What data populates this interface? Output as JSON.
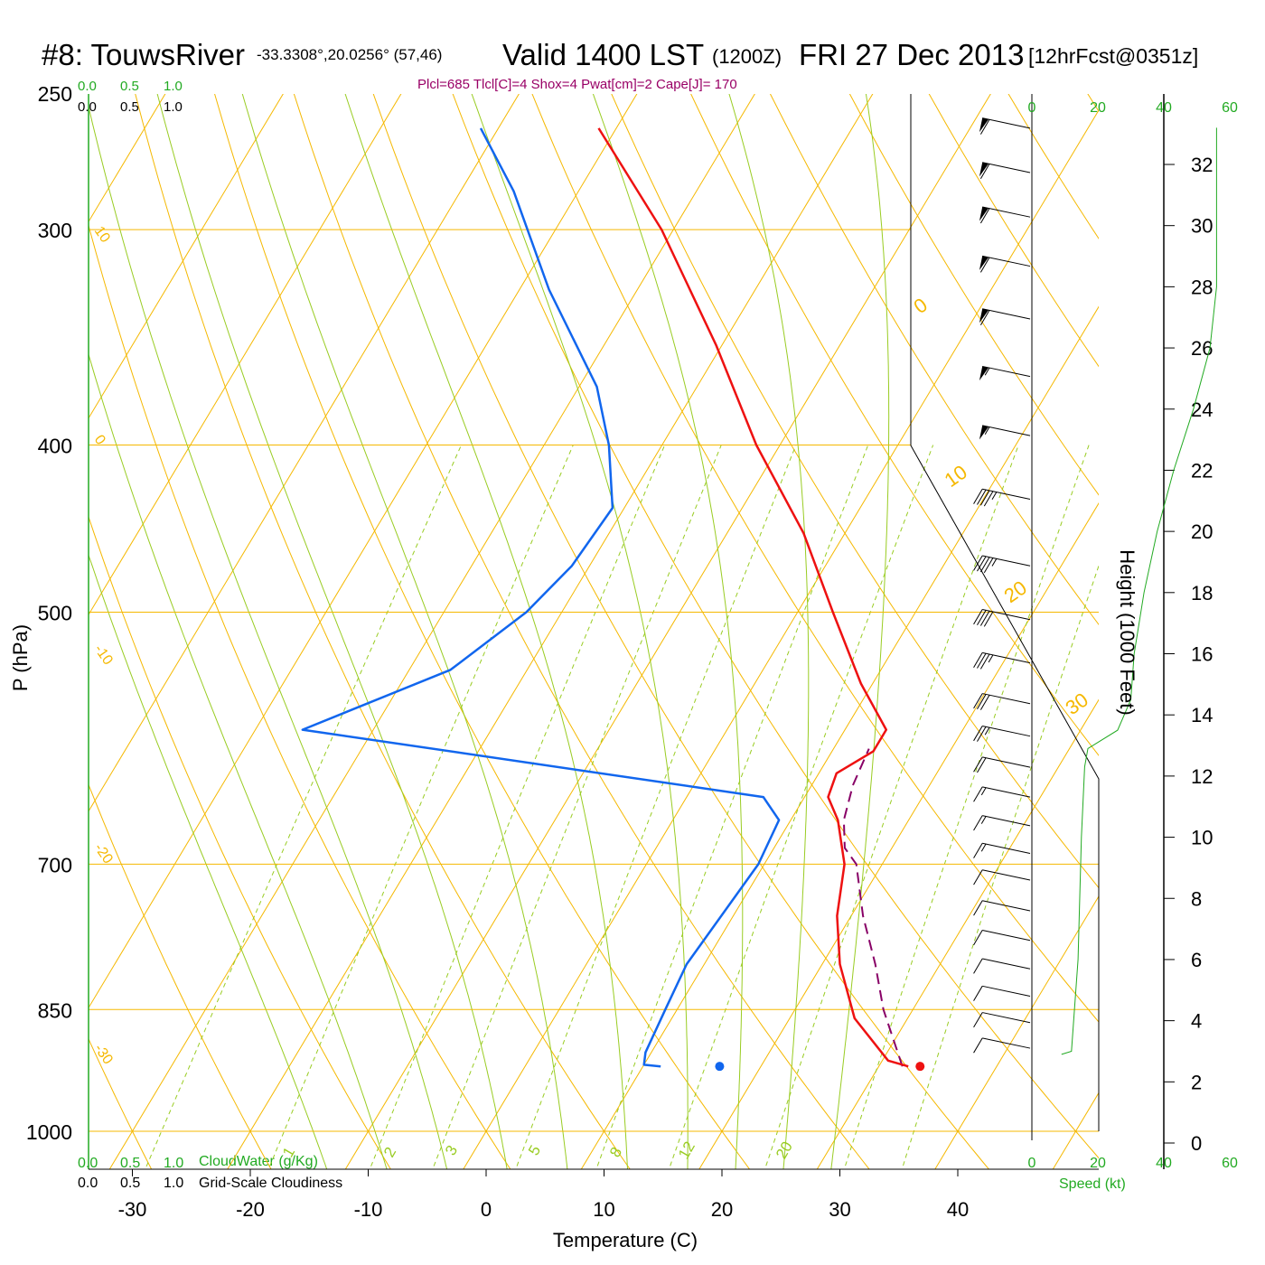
{
  "header": {
    "station": "#8: TouwsRiver",
    "coords": "-33.3308°,20.0256° (57,46)",
    "valid": "Valid 1400 LST",
    "utc": "(1200Z)",
    "date": "FRI 27 Dec 2013",
    "forecast": "[12hrFcst@0351z]",
    "indices": "Plcl=685 Tlcl[C]=4 Shox=4 Pwat[cm]=2 Cape[J]= 170"
  },
  "legends": {
    "cloudwater_ticks": [
      "0.0",
      "0.5",
      "1.0"
    ],
    "cloudiness_ticks": [
      "0.0",
      "0.5",
      "1.0"
    ],
    "cloudwater_label": "CloudWater (g/Kg)",
    "cloudiness_label": "Grid-Scale Cloudiness"
  },
  "colors": {
    "temperature": "#ee1111",
    "dewpoint": "#1166ee",
    "parcel": "#880066",
    "isobar": "#f5b800",
    "isotherm": "#f5b800",
    "dry_adiabat": "#f5b800",
    "moist_adiabat": "#99cc22",
    "mixing_ratio": "#99cc22",
    "speed_profile": "#22aa22",
    "indices_text": "#990066",
    "wind_barb": "#000000"
  },
  "chart_data": {
    "type": "skew-t log-p sounding",
    "xlabel": "Temperature (C)",
    "ylabel": "P (hPa)",
    "height_label": "Height (1000 Feet)",
    "speed_label": "Speed (kt)",
    "x_ticks": [
      -30,
      -20,
      -10,
      0,
      10,
      20,
      30,
      40
    ],
    "pressure_ticks": [
      250,
      300,
      400,
      500,
      700,
      850,
      1000
    ],
    "height_ticks": [
      0,
      2,
      4,
      6,
      8,
      10,
      12,
      14,
      16,
      18,
      20,
      22,
      24,
      26,
      28,
      30,
      32
    ],
    "speed_ticks": [
      0,
      20,
      40,
      60
    ],
    "isotherm_labels": [
      "10",
      "0",
      "-10",
      "-20",
      "-30"
    ],
    "isotherm_labels_right": [
      "0",
      "10",
      "20",
      "30"
    ],
    "mixing_ratio_labels": [
      "1",
      "2",
      "3",
      "5",
      "8",
      "12",
      "20"
    ],
    "temperature_profile": [
      {
        "p": 917,
        "t": 32.5
      },
      {
        "p": 910,
        "t": 30.5
      },
      {
        "p": 860,
        "t": 25.5
      },
      {
        "p": 800,
        "t": 21.5
      },
      {
        "p": 750,
        "t": 18.8
      },
      {
        "p": 700,
        "t": 16.8
      },
      {
        "p": 660,
        "t": 14.0
      },
      {
        "p": 640,
        "t": 12.0
      },
      {
        "p": 620,
        "t": 11.5
      },
      {
        "p": 602,
        "t": 13.5
      },
      {
        "p": 585,
        "t": 13.5
      },
      {
        "p": 550,
        "t": 9.0
      },
      {
        "p": 500,
        "t": 3.0
      },
      {
        "p": 450,
        "t": -3.5
      },
      {
        "p": 400,
        "t": -12.0
      },
      {
        "p": 350,
        "t": -20.5
      },
      {
        "p": 300,
        "t": -31.0
      },
      {
        "p": 262,
        "t": -41.5
      }
    ],
    "dewpoint_profile": [
      {
        "p": 917,
        "t": 11.5
      },
      {
        "p": 915,
        "t": 10.0
      },
      {
        "p": 900,
        "t": 9.5
      },
      {
        "p": 850,
        "t": 9.0
      },
      {
        "p": 800,
        "t": 8.5
      },
      {
        "p": 700,
        "t": 9.5
      },
      {
        "p": 660,
        "t": 9.0
      },
      {
        "p": 640,
        "t": 6.5
      },
      {
        "p": 585,
        "t": -36.0
      },
      {
        "p": 540,
        "t": -26.5
      },
      {
        "p": 500,
        "t": -23.0
      },
      {
        "p": 470,
        "t": -21.5
      },
      {
        "p": 435,
        "t": -21.0
      },
      {
        "p": 400,
        "t": -24.5
      },
      {
        "p": 370,
        "t": -28.5
      },
      {
        "p": 325,
        "t": -37.5
      },
      {
        "p": 285,
        "t": -45.5
      },
      {
        "p": 262,
        "t": -51.5
      }
    ],
    "parcel_profile": [
      {
        "p": 917,
        "t": 32.0
      },
      {
        "p": 850,
        "t": 27.5
      },
      {
        "p": 800,
        "t": 24.5
      },
      {
        "p": 750,
        "t": 21.0
      },
      {
        "p": 700,
        "t": 17.8
      },
      {
        "p": 685,
        "t": 16.0
      },
      {
        "p": 660,
        "t": 14.5
      },
      {
        "p": 630,
        "t": 13.5
      },
      {
        "p": 600,
        "t": 13.0
      }
    ],
    "surface_temperature": {
      "p": 917,
      "t": 33.5
    },
    "surface_dewpoint": {
      "p": 917,
      "t": 16.5
    },
    "wind_barbs_kt": [
      {
        "p": 262,
        "kt": 60
      },
      {
        "p": 278,
        "kt": 60
      },
      {
        "p": 295,
        "kt": 60
      },
      {
        "p": 315,
        "kt": 60
      },
      {
        "p": 338,
        "kt": 60
      },
      {
        "p": 365,
        "kt": 55
      },
      {
        "p": 395,
        "kt": 55
      },
      {
        "p": 430,
        "kt": 45
      },
      {
        "p": 470,
        "kt": 45
      },
      {
        "p": 505,
        "kt": 40
      },
      {
        "p": 535,
        "kt": 35
      },
      {
        "p": 565,
        "kt": 30
      },
      {
        "p": 590,
        "kt": 25
      },
      {
        "p": 615,
        "kt": 20
      },
      {
        "p": 640,
        "kt": 15
      },
      {
        "p": 665,
        "kt": 15
      },
      {
        "p": 690,
        "kt": 15
      },
      {
        "p": 715,
        "kt": 10
      },
      {
        "p": 745,
        "kt": 10
      },
      {
        "p": 775,
        "kt": 10
      },
      {
        "p": 805,
        "kt": 10
      },
      {
        "p": 835,
        "kt": 10
      },
      {
        "p": 865,
        "kt": 10
      },
      {
        "p": 895,
        "kt": 10
      }
    ],
    "speed_profile": [
      {
        "h": 2.9,
        "kt": 9
      },
      {
        "h": 3.0,
        "kt": 12
      },
      {
        "h": 6.0,
        "kt": 14
      },
      {
        "h": 10.0,
        "kt": 15
      },
      {
        "h": 12.3,
        "kt": 16
      },
      {
        "h": 12.9,
        "kt": 17
      },
      {
        "h": 13.5,
        "kt": 26
      },
      {
        "h": 14.5,
        "kt": 30
      },
      {
        "h": 16.0,
        "kt": 31
      },
      {
        "h": 18.0,
        "kt": 34
      },
      {
        "h": 20.0,
        "kt": 38
      },
      {
        "h": 22.0,
        "kt": 43
      },
      {
        "h": 24.0,
        "kt": 49
      },
      {
        "h": 26.0,
        "kt": 54
      },
      {
        "h": 28.0,
        "kt": 56
      },
      {
        "h": 30.0,
        "kt": 56
      },
      {
        "h": 33.2,
        "kt": 56
      }
    ]
  }
}
